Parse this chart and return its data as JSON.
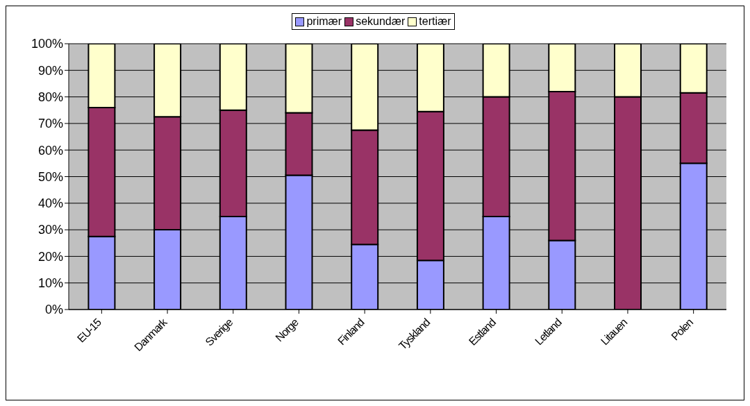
{
  "chart_data": {
    "type": "bar",
    "stacked": true,
    "categories": [
      "EU-15",
      "Danmark",
      "Sverige",
      "Norge",
      "Finland",
      "Tyskland",
      "Estland",
      "Letland",
      "Litauen",
      "Polen"
    ],
    "series": [
      {
        "name": "primær",
        "color": "#9999ff",
        "values": [
          27.5,
          30,
          35,
          50.5,
          24.5,
          18.5,
          35,
          26,
          0,
          55
        ]
      },
      {
        "name": "sekundær",
        "color": "#993366",
        "values": [
          48.5,
          42.5,
          40,
          23.5,
          43,
          56,
          45,
          56,
          80,
          26.5
        ]
      },
      {
        "name": "tertiær",
        "color": "#ffffcc",
        "values": [
          24,
          27.5,
          25,
          26,
          32.5,
          25.5,
          20,
          18,
          20,
          18.5
        ]
      }
    ],
    "ylim": [
      0,
      100
    ],
    "yticks": [
      {
        "value": 0,
        "label": "0%"
      },
      {
        "value": 10,
        "label": "10%"
      },
      {
        "value": 20,
        "label": "20%"
      },
      {
        "value": 30,
        "label": "30%"
      },
      {
        "value": 40,
        "label": "40%"
      },
      {
        "value": 50,
        "label": "50%"
      },
      {
        "value": 60,
        "label": "60%"
      },
      {
        "value": 70,
        "label": "70%"
      },
      {
        "value": 80,
        "label": "80%"
      },
      {
        "value": 90,
        "label": "90%"
      },
      {
        "value": 100,
        "label": "100%"
      }
    ],
    "grid": "y",
    "legend": "top"
  }
}
